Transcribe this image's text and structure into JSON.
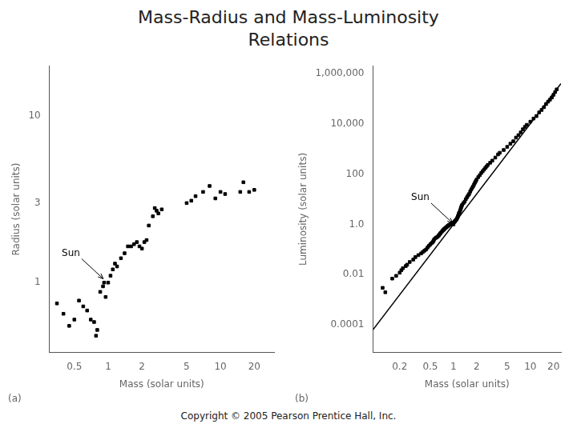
{
  "title": [
    "Mass-Radius and Mass-Luminosity",
    "Relations"
  ],
  "annotations": [
    {
      "text": "Copyright © 2005 Pearson Prentice Hall, Inc."
    }
  ],
  "chart_data": [
    {
      "type": "scatter",
      "subtitle": "(a)",
      "log": true,
      "grid": false,
      "xlabel": "Mass (solar units)",
      "ylabel": "Radius (solar units)",
      "xlim": [
        0.3,
        30
      ],
      "ylim": [
        0.38,
        20
      ],
      "xticks": [
        0.5,
        1,
        2,
        5,
        10,
        20
      ],
      "yticks": [
        1,
        3,
        10
      ],
      "annotations": [
        {
          "text": "Sun",
          "x": 0.95,
          "y": 1.02
        }
      ],
      "series": [
        {
          "type": "scatter",
          "marker": "square",
          "color": "#000000",
          "x": [
            0.35,
            0.4,
            0.45,
            0.5,
            0.55,
            0.6,
            0.65,
            0.7,
            0.75,
            0.78,
            0.8,
            0.85,
            0.9,
            0.92,
            0.95,
            1.0,
            1.05,
            1.1,
            1.15,
            1.2,
            1.3,
            1.4,
            1.5,
            1.6,
            1.7,
            1.8,
            1.9,
            2.0,
            2.1,
            2.2,
            2.3,
            2.5,
            2.6,
            2.7,
            2.8,
            3.0,
            5.0,
            5.5,
            6.0,
            7.0,
            8.0,
            9.0,
            10.0,
            11.0,
            15.0,
            16.0,
            18.0,
            20.0
          ],
          "values": [
            0.75,
            0.65,
            0.55,
            0.6,
            0.78,
            0.72,
            0.68,
            0.6,
            0.58,
            0.48,
            0.52,
            0.88,
            0.95,
            1.0,
            0.82,
            1.0,
            1.1,
            1.2,
            1.3,
            1.25,
            1.4,
            1.5,
            1.65,
            1.65,
            1.7,
            1.75,
            1.65,
            1.6,
            1.75,
            1.8,
            2.2,
            2.5,
            2.8,
            2.7,
            2.6,
            2.75,
            3.0,
            3.1,
            3.3,
            3.5,
            3.8,
            3.2,
            3.5,
            3.4,
            3.5,
            4.0,
            3.5,
            3.6
          ]
        }
      ]
    },
    {
      "type": "scatter",
      "subtitle": "(b)",
      "log": true,
      "grid": false,
      "xlabel": "Mass (solar units)",
      "ylabel": "Luminosity (solar units)",
      "xlim": [
        0.09,
        25
      ],
      "ylim": [
        8e-06,
        2000000
      ],
      "xticks": [
        0.2,
        0.5,
        1,
        2,
        5,
        10,
        20
      ],
      "yticks": [
        0.0001,
        0.01,
        {
          "value": 1.0,
          "label": "1.0"
        },
        100,
        {
          "value": 10000,
          "label": "10,000"
        },
        {
          "value": 1000000,
          "label": "1,000,000"
        }
      ],
      "annotations": [
        {
          "text": "Sun",
          "x": 1.05,
          "y": 0.9
        }
      ],
      "series": [
        {
          "type": "scatter",
          "marker": "square",
          "color": "#000000",
          "x": [
            0.12,
            0.13,
            0.16,
            0.18,
            0.2,
            0.21,
            0.22,
            0.24,
            0.25,
            0.27,
            0.3,
            0.32,
            0.35,
            0.38,
            0.4,
            0.42,
            0.44,
            0.46,
            0.48,
            0.5,
            0.52,
            0.54,
            0.55,
            0.56,
            0.58,
            0.6,
            0.62,
            0.64,
            0.65,
            0.67,
            0.68,
            0.7,
            0.72,
            0.74,
            0.75,
            0.76,
            0.78,
            0.8,
            0.82,
            0.84,
            0.85,
            0.87,
            0.88,
            0.9,
            0.92,
            0.94,
            0.95,
            0.97,
            0.98,
            1.0,
            1.02,
            1.04,
            1.05,
            1.06,
            1.08,
            1.1,
            1.12,
            1.14,
            1.15,
            1.17,
            1.18,
            1.2,
            1.22,
            1.24,
            1.25,
            1.27,
            1.28,
            1.3,
            1.35,
            1.4,
            1.45,
            1.5,
            1.55,
            1.6,
            1.65,
            1.7,
            1.75,
            1.8,
            1.85,
            1.9,
            1.95,
            2.0,
            2.1,
            2.2,
            2.3,
            2.4,
            2.5,
            2.6,
            2.7,
            2.8,
            3.0,
            3.2,
            3.5,
            3.8,
            4.0,
            4.5,
            5.0,
            5.5,
            6.0,
            6.5,
            7.0,
            7.5,
            8.0,
            8.5,
            9.0,
            10.0,
            11.0,
            12.0,
            13.0,
            14.0,
            15.0,
            16.0,
            17.0,
            18.0,
            19.0,
            20.0,
            21.0,
            22.0
          ],
          "values": [
            0.003,
            0.002,
            0.007,
            0.009,
            0.012,
            0.015,
            0.018,
            0.022,
            0.025,
            0.032,
            0.04,
            0.05,
            0.06,
            0.07,
            0.08,
            0.09,
            0.1,
            0.12,
            0.14,
            0.16,
            0.18,
            0.2,
            0.22,
            0.25,
            0.28,
            0.3,
            0.32,
            0.35,
            0.38,
            0.42,
            0.45,
            0.5,
            0.55,
            0.6,
            0.62,
            0.65,
            0.7,
            0.75,
            0.8,
            0.85,
            0.88,
            0.92,
            0.95,
            0.98,
            1.0,
            1.05,
            1.08,
            1.12,
            1.15,
            1.0,
            1.2,
            1.3,
            1.35,
            1.4,
            1.5,
            1.6,
            1.8,
            2.0,
            2.2,
            2.5,
            2.8,
            3.0,
            3.5,
            4.0,
            4.5,
            5.0,
            5.5,
            6.0,
            7.0,
            8.0,
            10.0,
            12.0,
            14.0,
            16.0,
            20.0,
            24.0,
            28.0,
            32.0,
            38.0,
            45.0,
            52.0,
            60.0,
            75.0,
            90.0,
            110.0,
            130.0,
            150.0,
            175.0,
            200.0,
            230.0,
            280.0,
            340.0,
            450.0,
            600.0,
            700.0,
            900.0,
            1200.0,
            1600.0,
            2000.0,
            2800.0,
            3500.0,
            4500.0,
            6000.0,
            7500.0,
            9000.0,
            12000.0,
            16000.0,
            20000.0,
            28000.0,
            35000.0,
            45000.0,
            60000.0,
            75000.0,
            90000.0,
            110000.0,
            140000.0,
            180000.0,
            230000.0
          ]
        },
        {
          "type": "line",
          "line_style": "solid",
          "color": "#000000",
          "x": [
            0.09,
            25
          ],
          "values": [
            6.561e-05,
            390625
          ]
        }
      ]
    }
  ]
}
